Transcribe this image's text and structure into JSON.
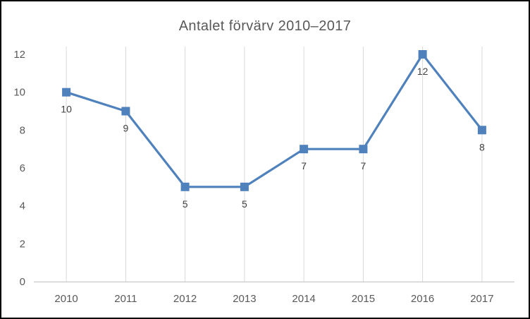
{
  "chart_data": {
    "type": "line",
    "title": "Antalet förvärv 2010–2017",
    "categories": [
      "2010",
      "2011",
      "2012",
      "2013",
      "2014",
      "2015",
      "2016",
      "2017"
    ],
    "values": [
      10,
      9,
      5,
      5,
      7,
      7,
      12,
      8
    ],
    "data_labels": [
      "10",
      "9",
      "5",
      "5",
      "7",
      "7",
      "12",
      "8"
    ],
    "xlabel": "",
    "ylabel": "",
    "ylim": [
      0,
      12
    ],
    "yticks": [
      "0",
      "2",
      "4",
      "6",
      "8",
      "10",
      "12"
    ],
    "grid": "vertical-only",
    "legend": "none",
    "marker": "square",
    "data_label_position": "below",
    "colors": {
      "line": "#4F81BD",
      "marker": "#4F81BD",
      "gridline": "#D9D9D9",
      "axis_line": "#BFBFBF",
      "axis_text": "#595959",
      "title_text": "#595959",
      "data_label_text": "#404040",
      "frame_border": "#000000",
      "background": "#FFFFFF"
    }
  }
}
